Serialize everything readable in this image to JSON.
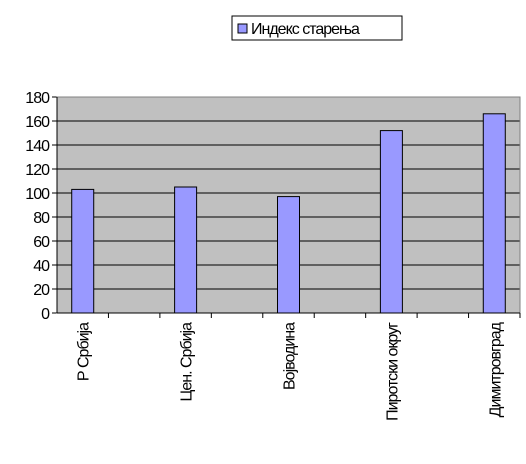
{
  "chart_data": {
    "type": "bar",
    "categories": [
      "Р Србија",
      null,
      "Цен. Србија",
      null,
      "Војводина",
      null,
      "Пиротски округ",
      null,
      "Димитровград"
    ],
    "series": [
      {
        "name": "Индекс старења",
        "color": "#9999ff",
        "values": [
          103,
          null,
          105,
          null,
          97,
          null,
          152,
          null,
          166
        ]
      }
    ],
    "ylim": [
      0,
      180
    ],
    "yticks": [
      0,
      20,
      40,
      60,
      80,
      100,
      120,
      140,
      160,
      180
    ],
    "grid": true,
    "legend": "top"
  }
}
